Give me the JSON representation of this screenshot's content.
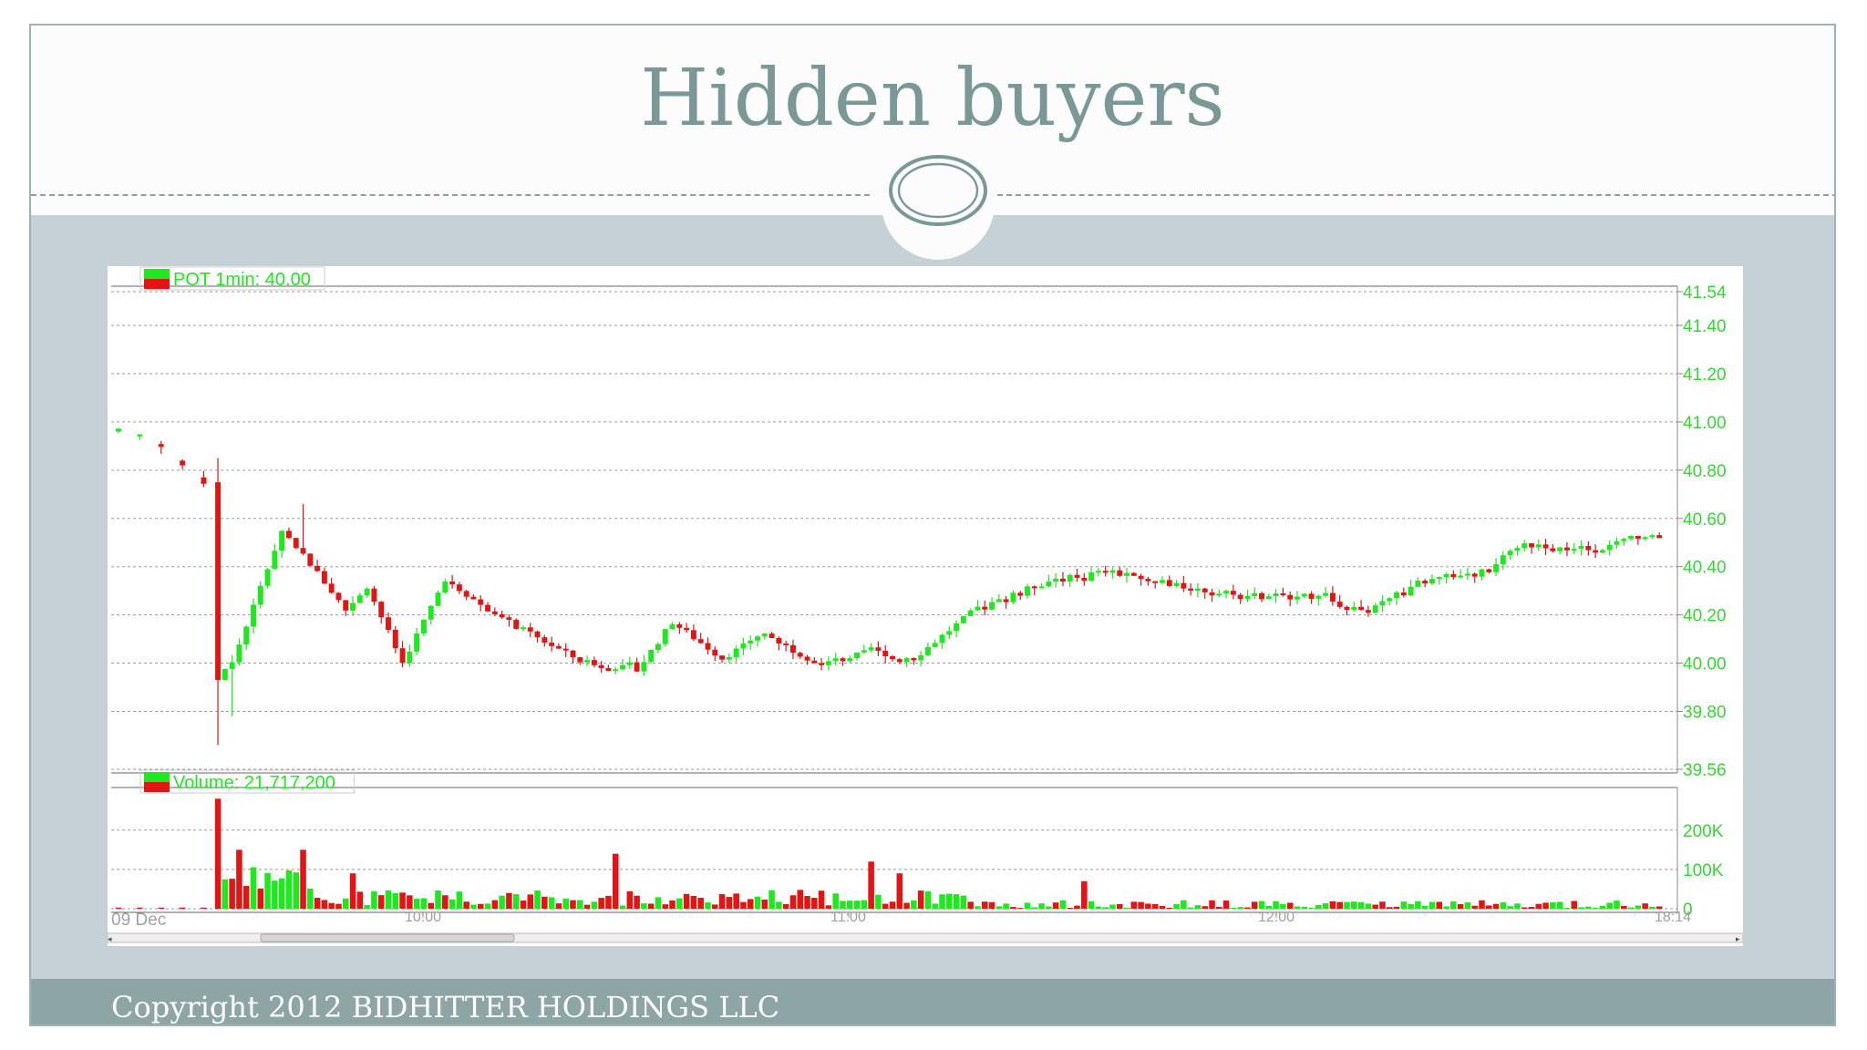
{
  "slide": {
    "title": "Hidden buyers",
    "copyright": "Copyright 2012 BIDHITTER HOLDINGS LLC"
  },
  "colors": {
    "up": "#1ee81e",
    "down": "#e51414",
    "title": "#7a9896",
    "axis_text": "#33d633",
    "footer": "#8da5a5",
    "background": "#c5d1d5"
  },
  "chart_data": [
    {
      "type": "candlestick",
      "legend": "POT 1min: 40.00",
      "ylim": [
        39.56,
        41.54
      ],
      "yticks": [
        "41.54",
        "41.40",
        "41.20",
        "41.00",
        "40.80",
        "40.60",
        "40.40",
        "40.20",
        "40.00",
        "39.80",
        "39.56"
      ],
      "xticks": [
        "09 Dec",
        "10:00",
        "11:00",
        "12:00",
        "18:14"
      ],
      "grid": true,
      "keypoints": [
        {
          "t": 0,
          "price": 40.96
        },
        {
          "t": 5,
          "price": 40.94
        },
        {
          "t": 13,
          "price": 40.75
        },
        {
          "t": 14,
          "price": 39.93
        },
        {
          "t": 17,
          "price": 40.0
        },
        {
          "t": 24,
          "price": 40.55
        },
        {
          "t": 27,
          "price": 40.45
        },
        {
          "t": 33,
          "price": 40.22
        },
        {
          "t": 36,
          "price": 40.32
        },
        {
          "t": 41,
          "price": 40.0
        },
        {
          "t": 47,
          "price": 40.35
        },
        {
          "t": 54,
          "price": 40.2
        },
        {
          "t": 66,
          "price": 40.01
        },
        {
          "t": 74,
          "price": 39.97
        },
        {
          "t": 79,
          "price": 40.17
        },
        {
          "t": 86,
          "price": 40.02
        },
        {
          "t": 92,
          "price": 40.12
        },
        {
          "t": 100,
          "price": 39.99
        },
        {
          "t": 107,
          "price": 40.05
        },
        {
          "t": 113,
          "price": 40.02
        },
        {
          "t": 122,
          "price": 40.23
        },
        {
          "t": 132,
          "price": 40.34
        },
        {
          "t": 140,
          "price": 40.38
        },
        {
          "t": 150,
          "price": 40.32
        },
        {
          "t": 160,
          "price": 40.27
        },
        {
          "t": 170,
          "price": 40.28
        },
        {
          "t": 176,
          "price": 40.21
        },
        {
          "t": 184,
          "price": 40.33
        },
        {
          "t": 194,
          "price": 40.4
        },
        {
          "t": 199,
          "price": 40.49
        },
        {
          "t": 209,
          "price": 40.47
        },
        {
          "t": 215,
          "price": 40.52
        }
      ]
    },
    {
      "type": "bar",
      "legend": "Volume: 21,717,200",
      "ylim": [
        0,
        290000
      ],
      "yticks": [
        "200K",
        "100K",
        "0"
      ],
      "grid": true,
      "peak_values": [
        {
          "t": 14,
          "volume": 280000
        },
        {
          "t": 17,
          "volume": 150000
        },
        {
          "t": 26,
          "volume": 150000
        },
        {
          "t": 33,
          "volume": 90000
        },
        {
          "t": 70,
          "volume": 140000
        },
        {
          "t": 106,
          "volume": 120000
        },
        {
          "t": 110,
          "volume": 90000
        },
        {
          "t": 136,
          "volume": 70000
        }
      ]
    }
  ]
}
